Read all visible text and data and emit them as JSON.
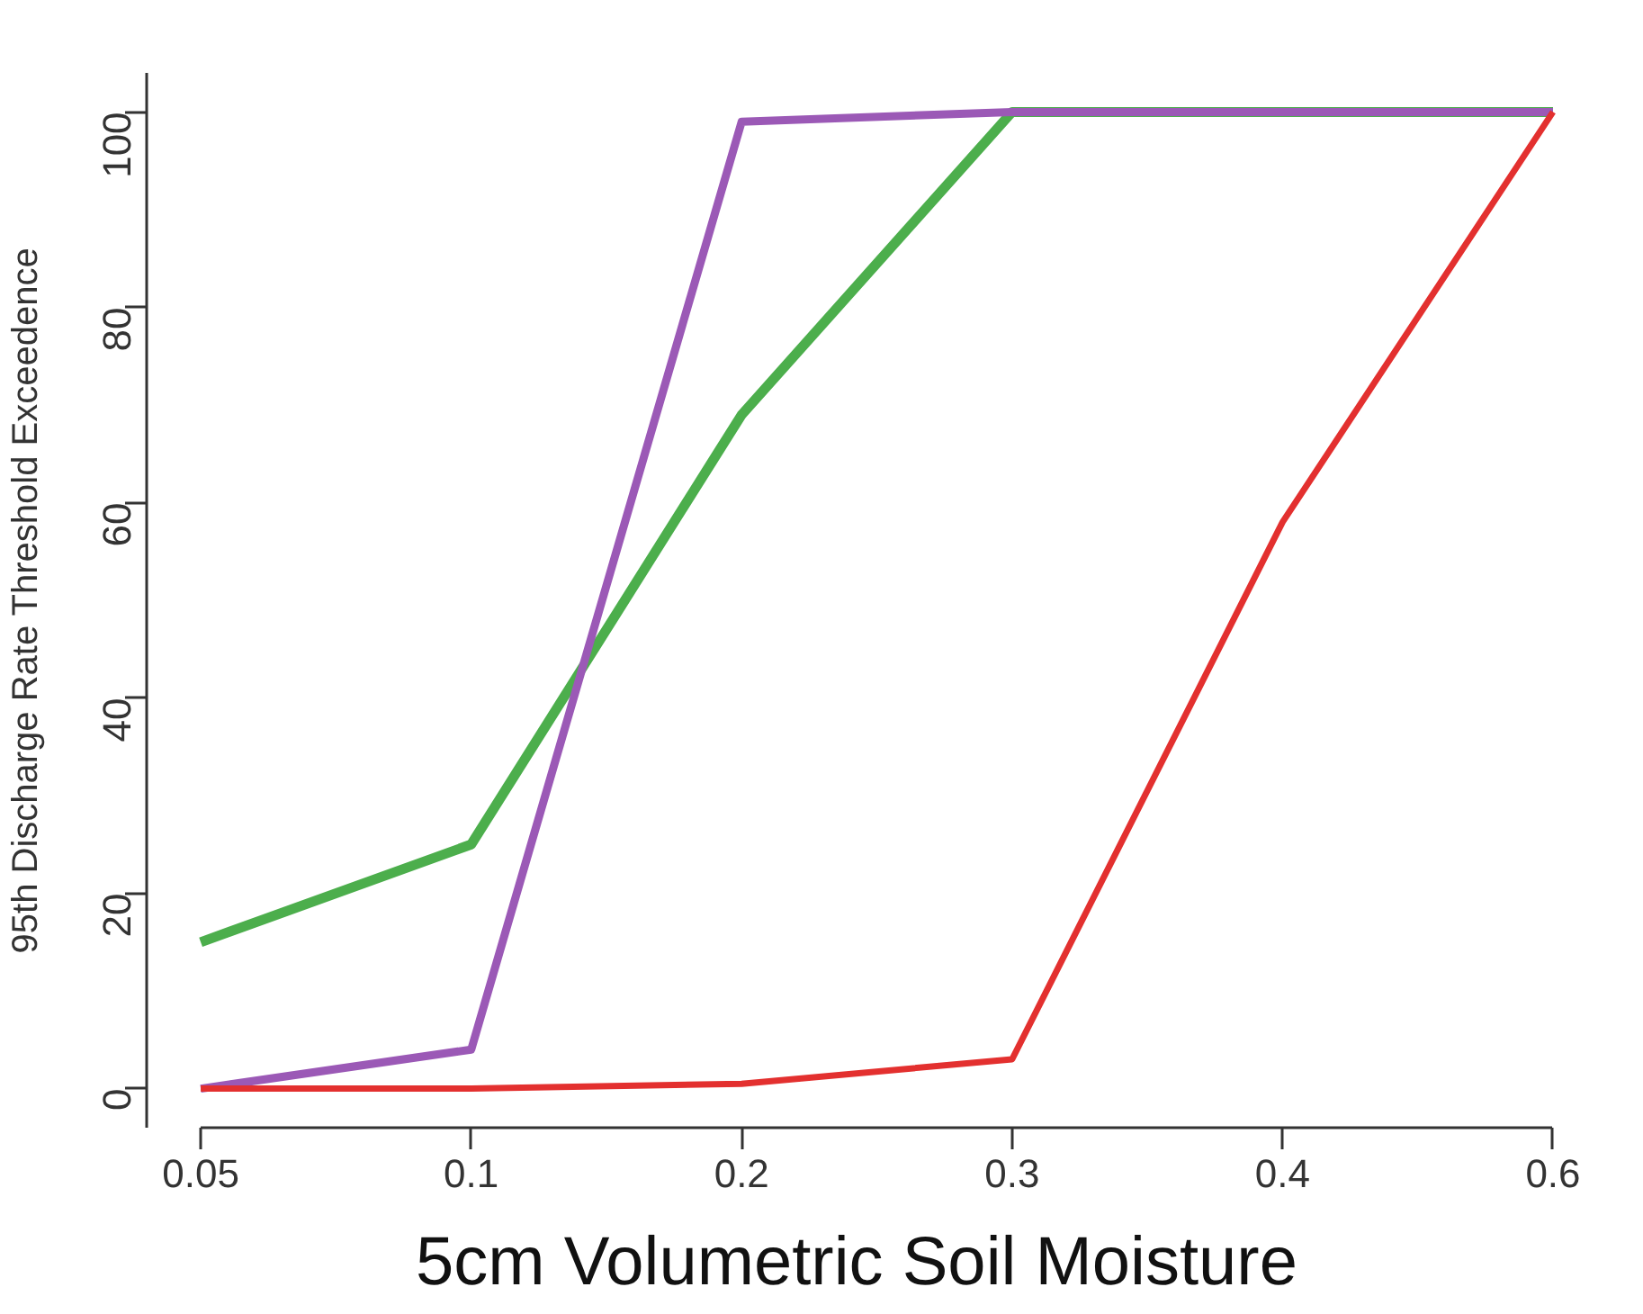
{
  "chart_data": {
    "type": "line",
    "xlabel": "5cm Volumetric Soil Moisture",
    "ylabel": "95th Discharge Rate Threshold Exceedence",
    "categories": [
      "0.05",
      "0.1",
      "0.2",
      "0.3",
      "0.4",
      "0.6"
    ],
    "series": [
      {
        "color": "#4cae4c",
        "values": [
          15,
          25,
          69,
          100,
          100,
          100
        ]
      },
      {
        "color": "#9b59b6",
        "values": [
          0,
          4,
          99,
          100,
          100,
          100
        ]
      },
      {
        "color": "#e3302f",
        "values": [
          0,
          0,
          0.5,
          3,
          58,
          100
        ]
      }
    ],
    "ylim": [
      -4,
      104
    ],
    "yticks": [
      0,
      20,
      40,
      60,
      80,
      100
    ],
    "grid": false,
    "marker": "none",
    "line_style": "solid"
  }
}
